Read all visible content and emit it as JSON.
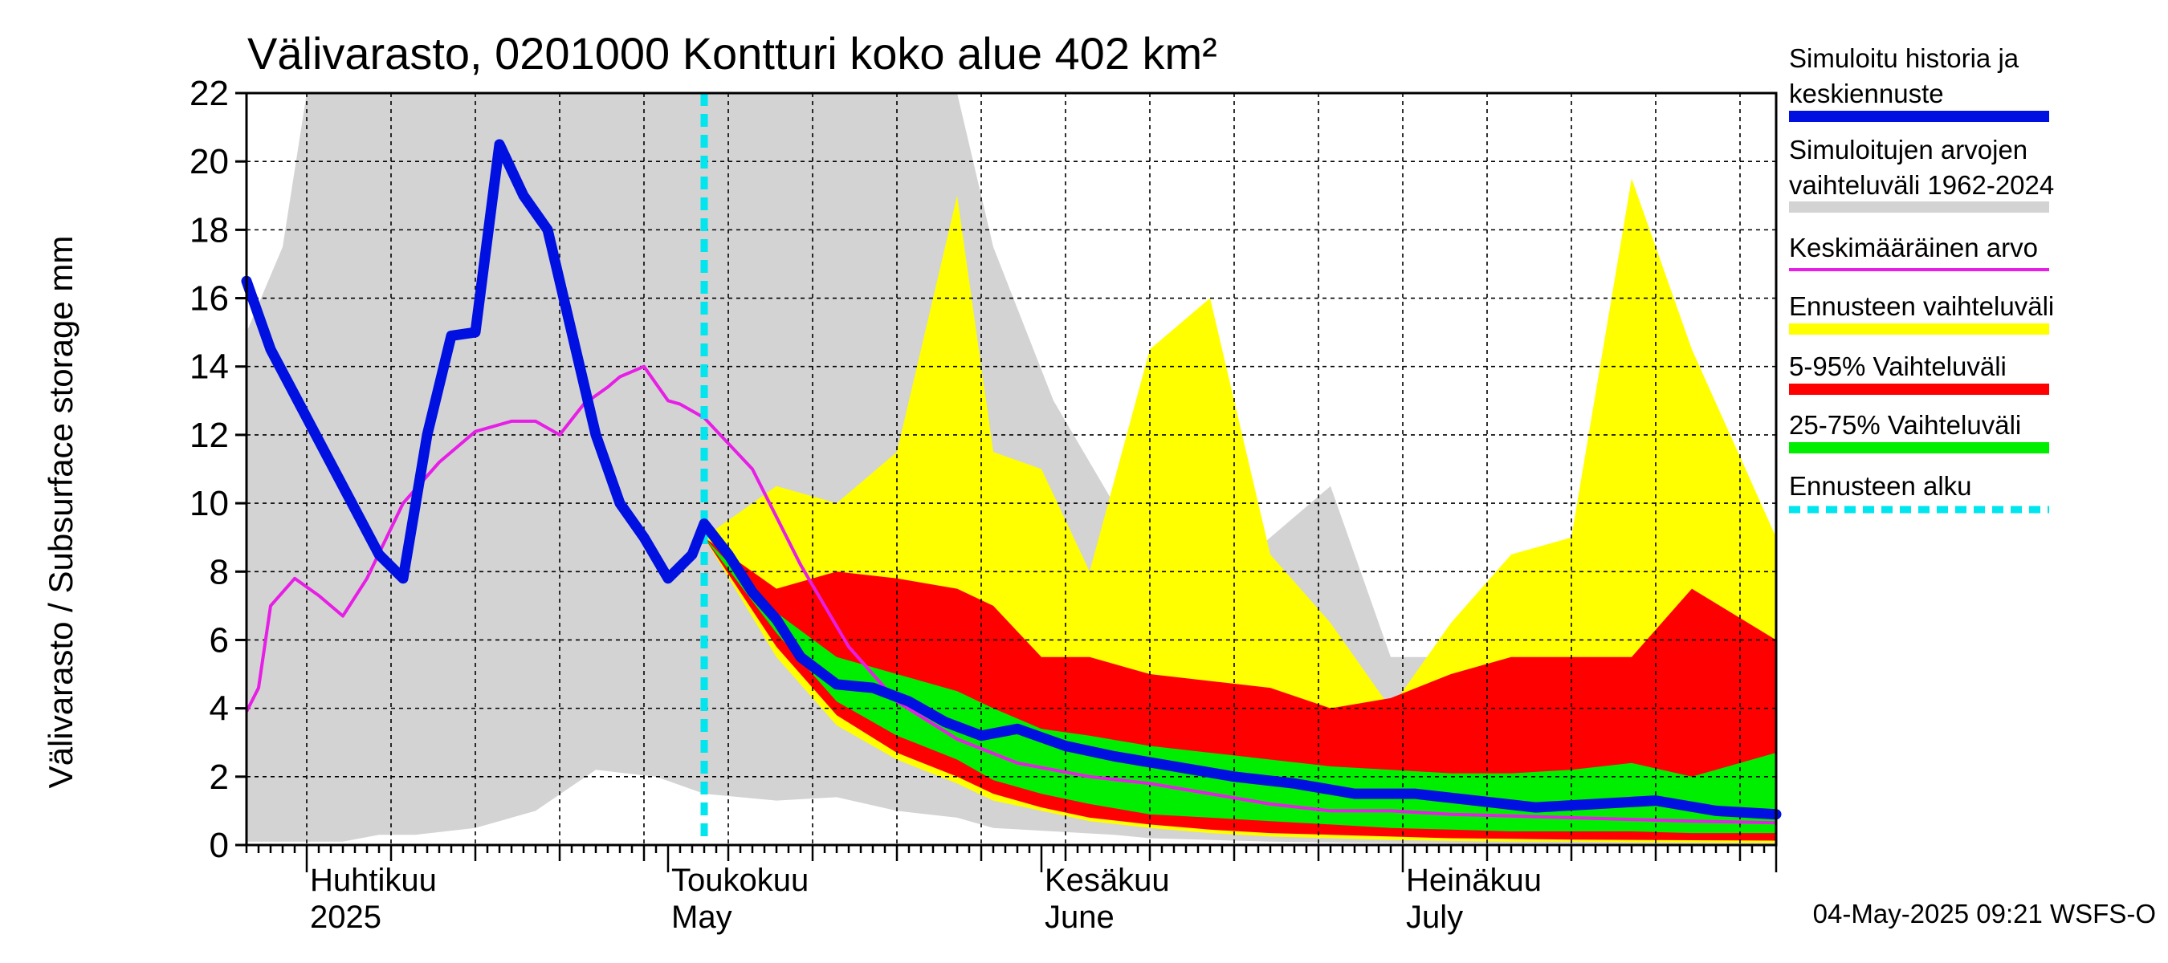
{
  "chart_data": {
    "type": "area",
    "title": "Välivarasto, 0201000 Kontturi koko alue 402 km²",
    "ylabel": "Välivarasto / Subsurface storage  mm",
    "ylim": [
      0,
      22
    ],
    "yticks": [
      0,
      2,
      4,
      6,
      8,
      10,
      12,
      14,
      16,
      18,
      20,
      22
    ],
    "xlim": [
      "2025-03-27",
      "2025-08-01"
    ],
    "month_labels": [
      {
        "date": "2025-04-01",
        "line1": "Huhtikuu",
        "line2": "2025"
      },
      {
        "date": "2025-05-01",
        "line1": "Toukokuu",
        "line2": "May"
      },
      {
        "date": "2025-06-01",
        "line1": "Kesäkuu",
        "line2": "June"
      },
      {
        "date": "2025-07-01",
        "line1": "Heinäkuu",
        "line2": "July"
      }
    ],
    "forecast_start": "2025-05-04",
    "footer": "04-May-2025 09:21 WSFS-O",
    "legend": [
      {
        "label_lines": [
          "Simuloitu historia ja",
          "keskiennuste"
        ],
        "color": "#0010e0",
        "style": "thick"
      },
      {
        "label_lines": [
          "Simuloitujen arvojen",
          "vaihteluväli 1962-2024"
        ],
        "color": "#d3d3d3",
        "style": "thick"
      },
      {
        "label_lines": [
          "Keskimääräinen arvo"
        ],
        "color": "#e61ee6",
        "style": "thin"
      },
      {
        "label_lines": [
          "Ennusteen vaihteluväli"
        ],
        "color": "#ffff00",
        "style": "thick"
      },
      {
        "label_lines": [
          "5-95% Vaihteluväli"
        ],
        "color": "#ff0000",
        "style": "thick"
      },
      {
        "label_lines": [
          "25-75% Vaihteluväli"
        ],
        "color": "#00ee00",
        "style": "thick"
      },
      {
        "label_lines": [
          "Ennusteen alku"
        ],
        "color": "#00e5ee",
        "style": "dashed"
      }
    ],
    "series": [
      {
        "name": "Simuloitujen arvojen vaihteluväli 1962-2024",
        "color": "#d3d3d3",
        "x": [
          "2025-03-27",
          "2025-03-30",
          "2025-04-01",
          "2025-04-04",
          "2025-04-07",
          "2025-04-10",
          "2025-04-15",
          "2025-04-20",
          "2025-04-25",
          "2025-04-30",
          "2025-05-04",
          "2025-05-10",
          "2025-05-15",
          "2025-05-20",
          "2025-05-25",
          "2025-05-28",
          "2025-06-02",
          "2025-06-07",
          "2025-06-10",
          "2025-06-15",
          "2025-06-20",
          "2025-06-25",
          "2025-06-30",
          "2025-07-05",
          "2025-07-10",
          "2025-07-15",
          "2025-07-20",
          "2025-07-25",
          "2025-08-01"
        ],
        "low": [
          0.1,
          0.1,
          0.1,
          0.1,
          0.3,
          0.3,
          0.5,
          1.0,
          2.2,
          2.0,
          1.5,
          1.3,
          1.4,
          1.0,
          0.8,
          0.5,
          0.4,
          0.3,
          0.2,
          0.15,
          0.1,
          0.08,
          0.06,
          0.05,
          0.04,
          0.04,
          0.03,
          0.03,
          0.02
        ],
        "high": [
          15.0,
          17.5,
          22,
          22,
          22,
          22,
          22,
          22,
          22,
          22,
          22,
          22,
          22,
          22,
          22,
          17.5,
          13.0,
          10.0,
          8.5,
          7.5,
          9.0,
          10.5,
          5.5,
          5.5,
          6.5,
          7.0,
          17.8,
          12.0,
          7.8
        ]
      },
      {
        "name": "Ennusteen vaihteluväli",
        "color": "#ffff00",
        "x": [
          "2025-05-04",
          "2025-05-10",
          "2025-05-15",
          "2025-05-20",
          "2025-05-25",
          "2025-05-28",
          "2025-06-01",
          "2025-06-05",
          "2025-06-10",
          "2025-06-15",
          "2025-06-20",
          "2025-06-25",
          "2025-06-30",
          "2025-07-05",
          "2025-07-10",
          "2025-07-15",
          "2025-07-20",
          "2025-07-25",
          "2025-08-01"
        ],
        "low": [
          9.0,
          5.5,
          3.5,
          2.5,
          1.8,
          1.3,
          1.0,
          0.7,
          0.5,
          0.35,
          0.25,
          0.2,
          0.15,
          0.12,
          0.1,
          0.1,
          0.08,
          0.07,
          0.06
        ],
        "high": [
          9.0,
          10.5,
          10.0,
          11.5,
          19.0,
          11.5,
          11.0,
          8.0,
          14.5,
          16.0,
          8.5,
          6.5,
          4.0,
          6.5,
          8.5,
          9.0,
          19.5,
          14.5,
          9.0
        ]
      },
      {
        "name": "5-95% Vaihteluväli",
        "color": "#ff0000",
        "x": [
          "2025-05-04",
          "2025-05-10",
          "2025-05-15",
          "2025-05-20",
          "2025-05-25",
          "2025-05-28",
          "2025-06-01",
          "2025-06-05",
          "2025-06-10",
          "2025-06-15",
          "2025-06-20",
          "2025-06-25",
          "2025-06-30",
          "2025-07-05",
          "2025-07-10",
          "2025-07-15",
          "2025-07-20",
          "2025-07-25",
          "2025-08-01"
        ],
        "low": [
          9.0,
          5.8,
          3.8,
          2.7,
          2.0,
          1.5,
          1.1,
          0.8,
          0.6,
          0.45,
          0.35,
          0.3,
          0.25,
          0.2,
          0.18,
          0.16,
          0.15,
          0.14,
          0.13
        ],
        "high": [
          9.0,
          7.5,
          8.0,
          7.8,
          7.5,
          7.0,
          5.5,
          5.5,
          5.0,
          4.8,
          4.6,
          4.0,
          4.3,
          5.0,
          5.5,
          5.5,
          5.5,
          7.5,
          6.0
        ]
      },
      {
        "name": "25-75% Vaihteluväli",
        "color": "#00ee00",
        "x": [
          "2025-05-04",
          "2025-05-10",
          "2025-05-15",
          "2025-05-20",
          "2025-05-25",
          "2025-05-28",
          "2025-06-01",
          "2025-06-05",
          "2025-06-10",
          "2025-06-15",
          "2025-06-20",
          "2025-06-25",
          "2025-06-30",
          "2025-07-05",
          "2025-07-10",
          "2025-07-15",
          "2025-07-20",
          "2025-07-25",
          "2025-08-01"
        ],
        "low": [
          9.0,
          6.2,
          4.2,
          3.2,
          2.5,
          1.9,
          1.5,
          1.2,
          0.9,
          0.8,
          0.7,
          0.6,
          0.5,
          0.45,
          0.4,
          0.4,
          0.4,
          0.35,
          0.35
        ],
        "high": [
          9.0,
          6.8,
          5.5,
          5.0,
          4.5,
          4.0,
          3.4,
          3.2,
          2.9,
          2.7,
          2.5,
          2.3,
          2.2,
          2.1,
          2.1,
          2.2,
          2.4,
          2.0,
          2.7
        ]
      },
      {
        "name": "Keskimääräinen arvo",
        "color": "#e61ee6",
        "x": [
          "2025-03-27",
          "2025-03-28",
          "2025-03-29",
          "2025-03-31",
          "2025-04-02",
          "2025-04-04",
          "2025-04-06",
          "2025-04-09",
          "2025-04-12",
          "2025-04-15",
          "2025-04-18",
          "2025-04-20",
          "2025-04-22",
          "2025-04-24",
          "2025-04-26",
          "2025-04-27",
          "2025-04-29",
          "2025-05-01",
          "2025-05-02",
          "2025-05-04",
          "2025-05-08",
          "2025-05-12",
          "2025-05-16",
          "2025-05-20",
          "2025-05-25",
          "2025-05-30",
          "2025-06-05",
          "2025-06-10",
          "2025-06-15",
          "2025-06-20",
          "2025-06-25",
          "2025-06-30",
          "2025-07-05",
          "2025-07-10",
          "2025-07-15",
          "2025-07-20",
          "2025-07-25",
          "2025-08-01"
        ],
        "y": [
          3.9,
          4.6,
          7.0,
          7.8,
          7.3,
          6.7,
          7.8,
          10.0,
          11.2,
          12.1,
          12.4,
          12.4,
          12.0,
          12.9,
          13.4,
          13.7,
          14.0,
          13.0,
          12.9,
          12.5,
          11.0,
          8.2,
          5.8,
          4.2,
          3.1,
          2.4,
          2.0,
          1.8,
          1.5,
          1.2,
          1.0,
          1.0,
          0.9,
          0.85,
          0.8,
          0.75,
          0.7,
          0.65
        ]
      },
      {
        "name": "Simuloitu historia ja keskiennuste",
        "color": "#0010e0",
        "x": [
          "2025-03-27",
          "2025-03-29",
          "2025-04-01",
          "2025-04-04",
          "2025-04-07",
          "2025-04-09",
          "2025-04-11",
          "2025-04-13",
          "2025-04-15",
          "2025-04-17",
          "2025-04-19",
          "2025-04-21",
          "2025-04-23",
          "2025-04-25",
          "2025-04-27",
          "2025-04-29",
          "2025-05-01",
          "2025-05-03",
          "2025-05-04",
          "2025-05-06",
          "2025-05-08",
          "2025-05-10",
          "2025-05-12",
          "2025-05-15",
          "2025-05-18",
          "2025-05-21",
          "2025-05-24",
          "2025-05-27",
          "2025-05-30",
          "2025-06-03",
          "2025-06-07",
          "2025-06-12",
          "2025-06-17",
          "2025-06-22",
          "2025-06-27",
          "2025-07-02",
          "2025-07-07",
          "2025-07-12",
          "2025-07-17",
          "2025-07-22",
          "2025-07-27",
          "2025-08-01"
        ],
        "y": [
          16.5,
          14.5,
          12.5,
          10.5,
          8.5,
          7.8,
          12.0,
          14.9,
          15.0,
          20.5,
          19.0,
          18.0,
          15.0,
          12.0,
          10.0,
          9.0,
          7.8,
          8.5,
          9.4,
          8.5,
          7.4,
          6.6,
          5.5,
          4.7,
          4.6,
          4.2,
          3.6,
          3.2,
          3.4,
          2.9,
          2.6,
          2.3,
          2.0,
          1.8,
          1.5,
          1.5,
          1.3,
          1.1,
          1.2,
          1.3,
          1.0,
          0.9
        ]
      }
    ]
  }
}
